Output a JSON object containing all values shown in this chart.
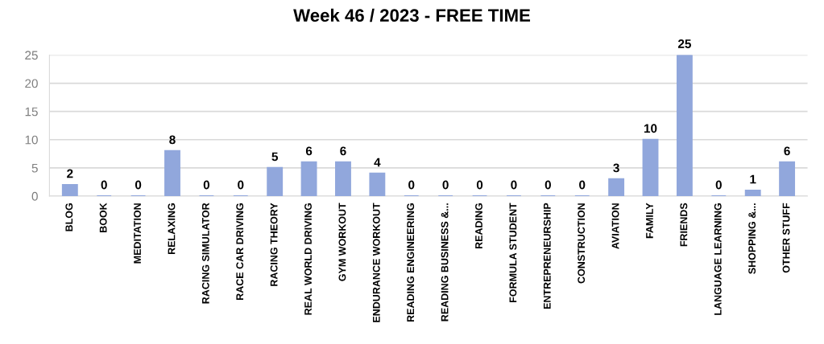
{
  "chart_data": {
    "type": "bar",
    "title": "Week 46 / 2023 - FREE TIME",
    "categories": [
      "BLOG",
      "BOOK",
      "MEDITATION",
      "RELAXING",
      "RACING SIMULATOR",
      "RACE CAR DRIVING",
      "RACING THEORY",
      "REAL WORLD DRIVING",
      "GYM WORKOUT",
      "ENDURANCE WORKOUT",
      "READING ENGINEERING",
      "READING BUSINESS &...",
      "READING",
      "FORMULA STUDENT",
      "ENTREPRENEURSHIP",
      "CONSTRUCTION",
      "AVIATION",
      "FAMILY",
      "FRIENDS",
      "LANGUAGE LEARNING",
      "SHOPPING &...",
      "OTHER STUFF"
    ],
    "values": [
      2,
      0,
      0,
      8,
      0,
      0,
      5,
      6,
      6,
      4,
      0,
      0,
      0,
      0,
      0,
      0,
      3,
      10,
      25,
      0,
      1,
      6
    ],
    "color": "#91a7dc",
    "ylim": [
      0,
      25
    ],
    "yticks": [
      0,
      5,
      10,
      15,
      20,
      25
    ],
    "grid": "y",
    "data_labels": true
  }
}
